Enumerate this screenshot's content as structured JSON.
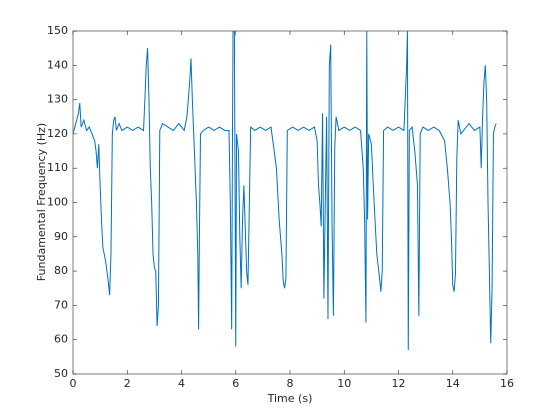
{
  "chart_data": {
    "type": "line",
    "xlabel": "Time (s)",
    "ylabel": "Fundamental Frequency (Hz)",
    "color": "#0072bd",
    "xlim": [
      0,
      16
    ],
    "xticks": [
      0,
      2,
      4,
      6,
      8,
      10,
      12,
      14,
      16
    ],
    "ylim": [
      50,
      150
    ],
    "yticks": [
      50,
      60,
      70,
      80,
      90,
      100,
      110,
      120,
      130,
      140,
      150
    ],
    "x": [
      0.0,
      0.1,
      0.2,
      0.25,
      0.3,
      0.4,
      0.5,
      0.6,
      0.7,
      0.8,
      0.85,
      0.9,
      0.95,
      1.0,
      1.05,
      1.1,
      1.2,
      1.3,
      1.35,
      1.4,
      1.45,
      1.5,
      1.55,
      1.6,
      1.7,
      1.8,
      2.0,
      2.2,
      2.4,
      2.6,
      2.65,
      2.7,
      2.75,
      2.8,
      2.85,
      2.9,
      2.95,
      3.0,
      3.05,
      3.1,
      3.15,
      3.2,
      3.3,
      3.5,
      3.7,
      3.9,
      4.1,
      4.2,
      4.3,
      4.35,
      4.4,
      4.5,
      4.55,
      4.6,
      4.63,
      4.66,
      4.7,
      4.8,
      5.0,
      5.2,
      5.4,
      5.6,
      5.75,
      5.8,
      5.85,
      5.88,
      5.9,
      5.95,
      6.0,
      6.03,
      6.1,
      6.15,
      6.2,
      6.25,
      6.3,
      6.4,
      6.45,
      6.55,
      6.7,
      6.9,
      7.1,
      7.3,
      7.5,
      7.6,
      7.7,
      7.75,
      7.8,
      7.85,
      7.9,
      8.1,
      8.3,
      8.5,
      8.7,
      8.9,
      9.0,
      9.05,
      9.1,
      9.15,
      9.2,
      9.25,
      9.3,
      9.35,
      9.4,
      9.45,
      9.5,
      9.55,
      9.6,
      9.65,
      9.7,
      9.8,
      10.0,
      10.2,
      10.4,
      10.6,
      10.7,
      10.75,
      10.8,
      10.83,
      10.86,
      10.9,
      11.0,
      11.1,
      11.2,
      11.3,
      11.35,
      11.4,
      11.45,
      11.6,
      11.8,
      12.0,
      12.2,
      12.3,
      12.33,
      12.36,
      12.4,
      12.5,
      12.6,
      12.7,
      12.75,
      12.8,
      12.9,
      13.1,
      13.3,
      13.5,
      13.7,
      13.8,
      13.9,
      13.95,
      14.0,
      14.05,
      14.1,
      14.15,
      14.2,
      14.3,
      14.4,
      14.6,
      14.8,
      15.0,
      15.05,
      15.1,
      15.15,
      15.2,
      15.25,
      15.3,
      15.35,
      15.4,
      15.45,
      15.5,
      15.55,
      15.6
    ],
    "values": [
      120,
      123,
      126,
      129,
      122,
      124,
      121,
      122,
      120,
      118,
      115,
      110,
      117,
      105,
      95,
      87,
      83,
      77,
      73,
      85,
      120,
      124,
      125,
      121,
      123,
      121,
      122,
      121,
      122,
      121,
      130,
      140,
      145,
      130,
      110,
      100,
      85,
      81,
      80,
      64,
      70,
      121,
      123,
      122,
      121,
      123,
      121,
      125,
      135,
      142,
      130,
      110,
      100,
      85,
      63,
      90,
      120,
      121,
      122,
      121,
      122,
      121,
      121,
      100,
      63,
      120,
      150,
      150,
      58,
      120,
      115,
      90,
      75,
      95,
      105,
      80,
      76,
      122,
      121,
      122,
      121,
      122,
      110,
      95,
      85,
      77,
      75,
      78,
      121,
      122,
      121,
      122,
      121,
      122,
      118,
      105,
      100,
      93,
      126,
      72,
      100,
      125,
      66,
      140,
      146,
      94,
      67,
      116,
      125,
      121,
      122,
      121,
      122,
      121,
      110,
      95,
      65,
      150,
      95,
      120,
      117,
      100,
      85,
      78,
      74,
      80,
      121,
      122,
      121,
      122,
      121,
      140,
      150,
      57,
      121,
      122,
      115,
      105,
      67,
      120,
      122,
      121,
      122,
      121,
      118,
      110,
      100,
      90,
      76,
      74,
      79,
      113,
      124,
      120,
      121,
      123,
      121,
      122,
      110,
      125,
      135,
      140,
      130,
      100,
      80,
      59,
      75,
      120,
      122,
      123
    ]
  }
}
